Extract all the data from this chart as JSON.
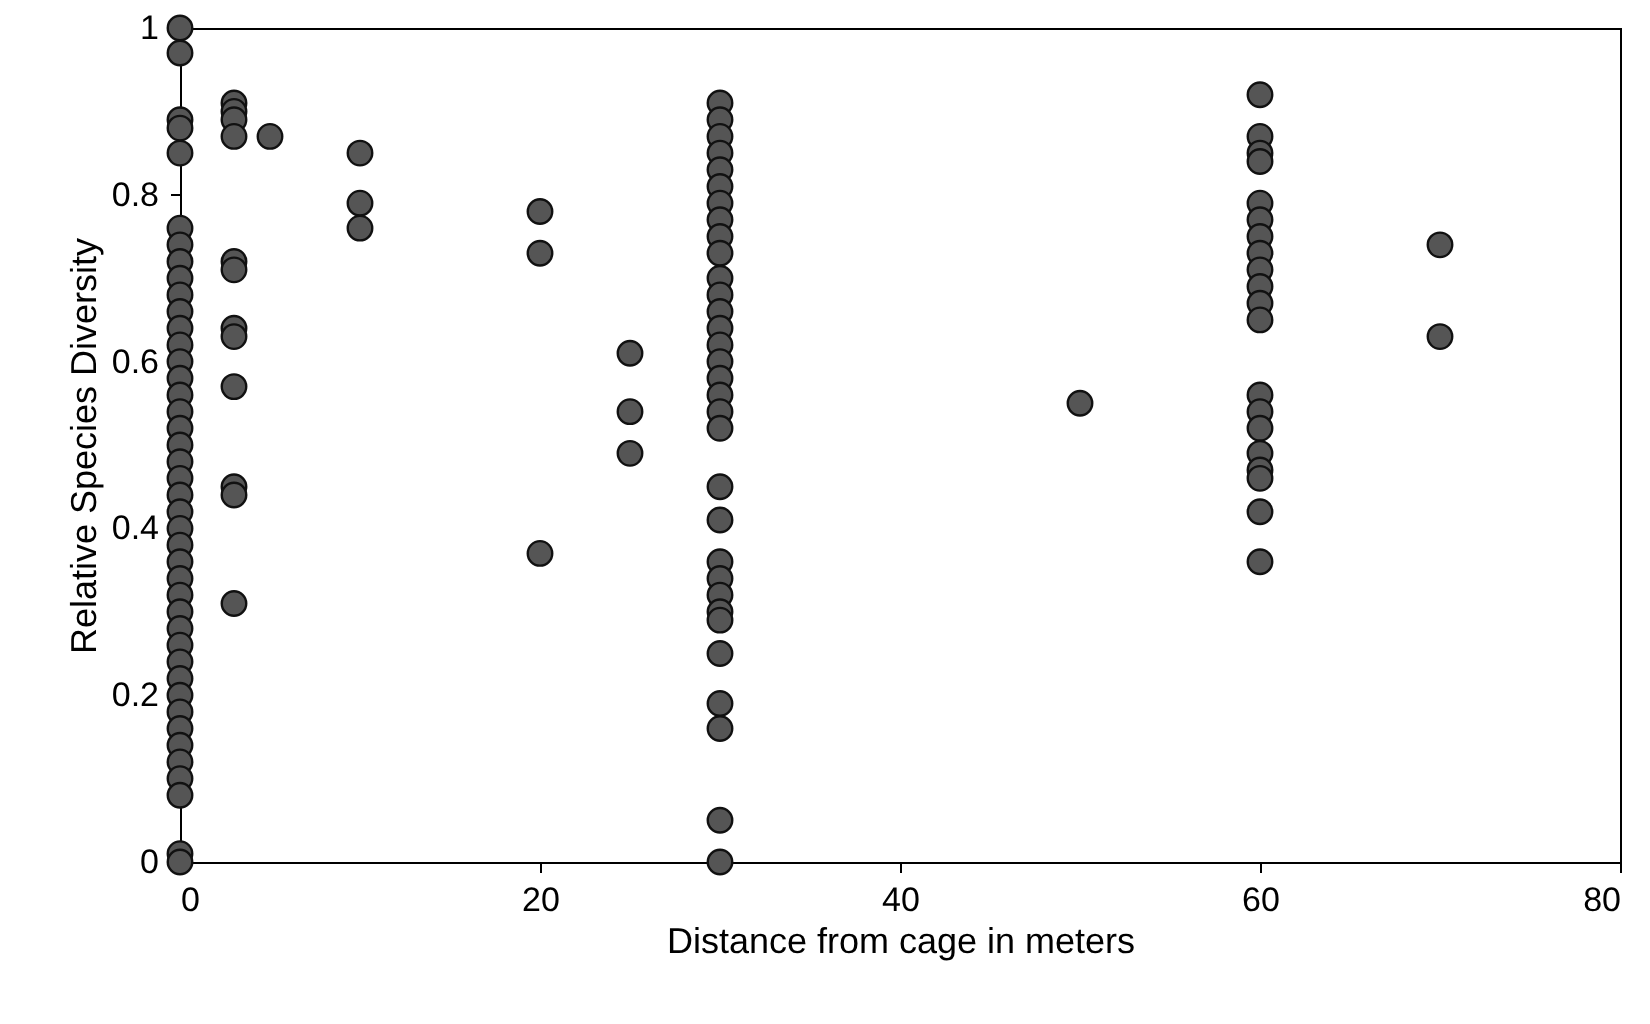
{
  "chart_data": {
    "type": "scatter",
    "xlabel": "Distance from cage in meters",
    "ylabel": "Relative Species Diversity",
    "xlim": [
      0,
      80
    ],
    "xticks": [
      0,
      20,
      40,
      60,
      80
    ],
    "ylim": [
      0,
      1
    ],
    "yticks": [
      0,
      0.2,
      0.4,
      0.6,
      0.8,
      1
    ],
    "grid": false,
    "marker": "circle",
    "series": [
      {
        "color": "#555555",
        "x": [
          0,
          0,
          0,
          0,
          0,
          0,
          0,
          0,
          0,
          0,
          0,
          0,
          0,
          0,
          0,
          0,
          0,
          0,
          0,
          0,
          0,
          0,
          0,
          0,
          0,
          0,
          0,
          0,
          0,
          0,
          0,
          0,
          0,
          0,
          0,
          0,
          0,
          0,
          0,
          0,
          0,
          0,
          3,
          3,
          3,
          3,
          3,
          3,
          3,
          3,
          3,
          3,
          3,
          3,
          5,
          10,
          10,
          10,
          20,
          20,
          20,
          25,
          25,
          25,
          30,
          30,
          30,
          30,
          30,
          30,
          30,
          30,
          30,
          30,
          30,
          30,
          30,
          30,
          30,
          30,
          30,
          30,
          30,
          30,
          30,
          30,
          30,
          30,
          30,
          30,
          30,
          30,
          30,
          30,
          30,
          30,
          50,
          60,
          60,
          60,
          60,
          60,
          60,
          60,
          60,
          60,
          60,
          60,
          60,
          60,
          60,
          60,
          60,
          60,
          60,
          60,
          60,
          70,
          70
        ],
        "values": [
          1,
          0.97,
          0.89,
          0.88,
          0.85,
          0.76,
          0.74,
          0.72,
          0.7,
          0.68,
          0.66,
          0.64,
          0.62,
          0.6,
          0.58,
          0.56,
          0.54,
          0.52,
          0.5,
          0.48,
          0.46,
          0.44,
          0.42,
          0.4,
          0.38,
          0.36,
          0.34,
          0.32,
          0.3,
          0.28,
          0.26,
          0.24,
          0.22,
          0.2,
          0.18,
          0.16,
          0.14,
          0.12,
          0.1,
          0.08,
          0.01,
          0,
          0.91,
          0.9,
          0.89,
          0.87,
          0.72,
          0.71,
          0.64,
          0.63,
          0.57,
          0.45,
          0.44,
          0.31,
          0.87,
          0.85,
          0.79,
          0.76,
          0.78,
          0.73,
          0.37,
          0.61,
          0.54,
          0.49,
          0.91,
          0.89,
          0.87,
          0.85,
          0.83,
          0.81,
          0.79,
          0.77,
          0.75,
          0.73,
          0.7,
          0.68,
          0.66,
          0.64,
          0.62,
          0.6,
          0.58,
          0.56,
          0.54,
          0.52,
          0.45,
          0.41,
          0.36,
          0.34,
          0.32,
          0.3,
          0.29,
          0.25,
          0.19,
          0.16,
          0.05,
          0,
          0.55,
          0.92,
          0.87,
          0.85,
          0.84,
          0.79,
          0.77,
          0.75,
          0.73,
          0.71,
          0.69,
          0.67,
          0.65,
          0.56,
          0.54,
          0.52,
          0.49,
          0.47,
          0.46,
          0.42,
          0.36,
          0.74,
          0.63
        ]
      }
    ]
  }
}
